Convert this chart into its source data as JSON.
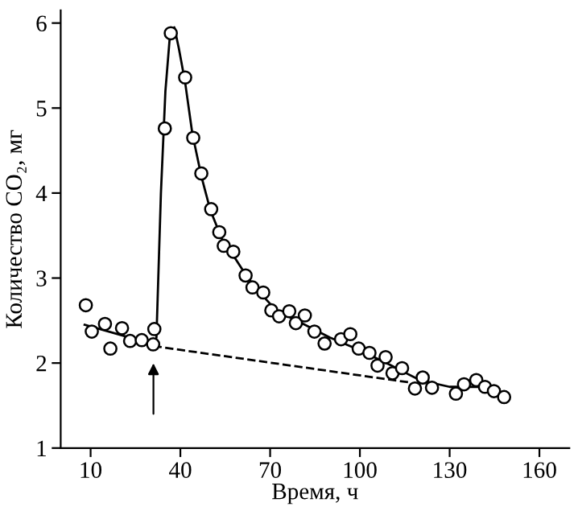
{
  "chart_data": {
    "type": "scatter",
    "xlabel": "Время, ч",
    "ylabel": "Количество CO₂, мг",
    "xlim": [
      0,
      170
    ],
    "ylim": [
      1,
      6.15
    ],
    "xticks": [
      10,
      40,
      70,
      100,
      130,
      160
    ],
    "yticks": [
      1,
      2,
      3,
      4,
      5,
      6
    ],
    "grid": false,
    "legend": false,
    "series": [
      {
        "marker": "circle",
        "color": "#000000",
        "x": [
          8.4,
          10.4,
          14.8,
          16.6,
          20.5,
          23.2,
          27.1,
          30.9,
          31.3,
          34.8,
          36.8,
          41.6,
          44.3,
          47,
          50.3,
          53,
          54.5,
          57.7,
          61.8,
          64.1,
          67.7,
          70.4,
          73,
          76.4,
          78.6,
          81.6,
          84.8,
          88.2,
          93.7,
          96.8,
          99.6,
          103.2,
          105.9,
          108.6,
          110.9,
          114.1,
          118.4,
          121,
          124.1,
          132.1,
          134.8,
          138.9,
          141.8,
          144.8,
          148.2
        ],
        "values": [
          2.68,
          2.37,
          2.46,
          2.17,
          2.41,
          2.26,
          2.27,
          2.22,
          2.4,
          4.76,
          5.88,
          5.36,
          4.65,
          4.23,
          3.81,
          3.54,
          3.38,
          3.31,
          3.03,
          2.89,
          2.83,
          2.62,
          2.55,
          2.61,
          2.47,
          2.56,
          2.37,
          2.23,
          2.28,
          2.34,
          2.17,
          2.12,
          1.97,
          2.07,
          1.88,
          1.94,
          1.7,
          1.83,
          1.71,
          1.64,
          1.75,
          1.8,
          1.72,
          1.67,
          1.6
        ]
      },
      {
        "type": "line",
        "marker": "none",
        "line_style": "solid",
        "color": "#000000",
        "x": [
          8,
          31,
          32,
          33.5,
          35,
          36.5,
          38,
          39.5,
          41.6,
          44,
          47,
          50,
          54,
          58,
          62,
          66,
          72,
          80,
          90,
          100,
          110,
          120,
          130,
          140,
          148
        ],
        "values": [
          2.45,
          2.22,
          2.3,
          4.0,
          5.2,
          5.85,
          5.95,
          5.7,
          5.3,
          4.7,
          4.2,
          3.8,
          3.45,
          3.25,
          3.03,
          2.85,
          2.62,
          2.48,
          2.3,
          2.15,
          1.98,
          1.8,
          1.72,
          1.72,
          1.62
        ]
      },
      {
        "type": "line",
        "marker": "none",
        "line_style": "dashed",
        "color": "#000000",
        "x": [
          31,
          117
        ],
        "values": [
          2.2,
          1.77
        ]
      }
    ]
  }
}
